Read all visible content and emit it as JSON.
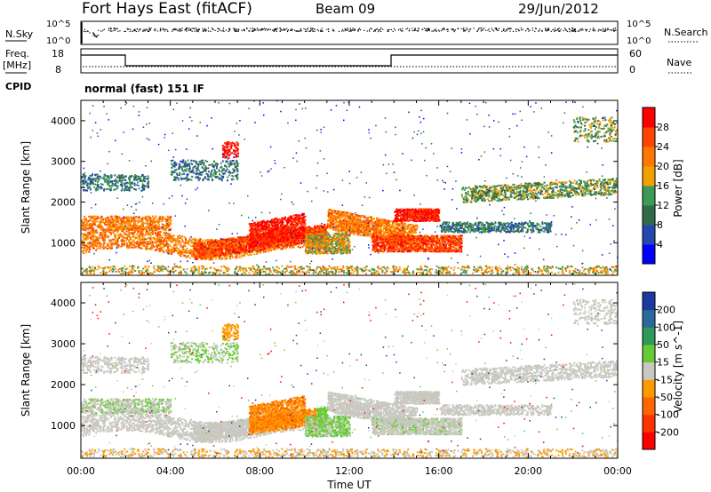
{
  "header": {
    "title": "Fort Hays East (fitACF)",
    "beam": "Beam 09",
    "date": "29/Jun/2012"
  },
  "summary": {
    "nsky_label": "N.Sky",
    "nsearch_label": "N.Search",
    "nsky_ticks": [
      "10^5",
      "10^0"
    ],
    "nsearch_ticks": [
      "10^5",
      "10^0"
    ],
    "freq_label": "Freq.",
    "freq_unit": "[MHz]",
    "freq_ticks": [
      "18",
      "8"
    ],
    "nave_label": "Nave",
    "nave_ticks": [
      "60",
      "0"
    ],
    "cpid_label": "CPID",
    "cpid_value": "normal (fast) 151 IF"
  },
  "colors": {
    "power_scale": [
      "#0000ff",
      "#2548b0",
      "#2f6b4a",
      "#3c9a55",
      "#f2a000",
      "#ff7700",
      "#ff4400",
      "#ff0000"
    ],
    "velocity_scale": [
      "#1a3aa0",
      "#2a6a9a",
      "#2f9a5a",
      "#66cc33",
      "#c8c8c0",
      "#ff9900",
      "#ff6600",
      "#ff3300",
      "#ff0000"
    ]
  },
  "chart_data": [
    {
      "type": "heatmap",
      "title": "",
      "ylabel": "Slant Range [km]",
      "ylim": [
        200,
        4500
      ],
      "yticks": [
        "4000",
        "3000",
        "2000",
        "1000"
      ],
      "xlabel": "Time UT",
      "xlim": [
        "00:00",
        "24:00"
      ],
      "xticks": [
        "00:00",
        "04:00",
        "08:00",
        "12:00",
        "16:00",
        "20:00",
        "00:00"
      ],
      "colorbar_label": "Power [dB]",
      "colorbar_ticks": [
        "28",
        "24",
        "20",
        "16",
        "12",
        "8",
        "4"
      ]
    },
    {
      "type": "heatmap",
      "title": "",
      "ylabel": "Slant Range [km]",
      "ylim": [
        200,
        4500
      ],
      "yticks": [
        "4000",
        "3000",
        "2000",
        "1000"
      ],
      "xlabel": "Time UT",
      "xlim": [
        "00:00",
        "24:00"
      ],
      "xticks": [
        "00:00",
        "04:00",
        "08:00",
        "12:00",
        "16:00",
        "20:00",
        "00:00"
      ],
      "colorbar_label": "Velocity [m s^-1]",
      "colorbar_ticks": [
        "200",
        "100",
        "50",
        "15",
        "-15",
        "-50",
        "-100",
        "-200"
      ]
    }
  ]
}
